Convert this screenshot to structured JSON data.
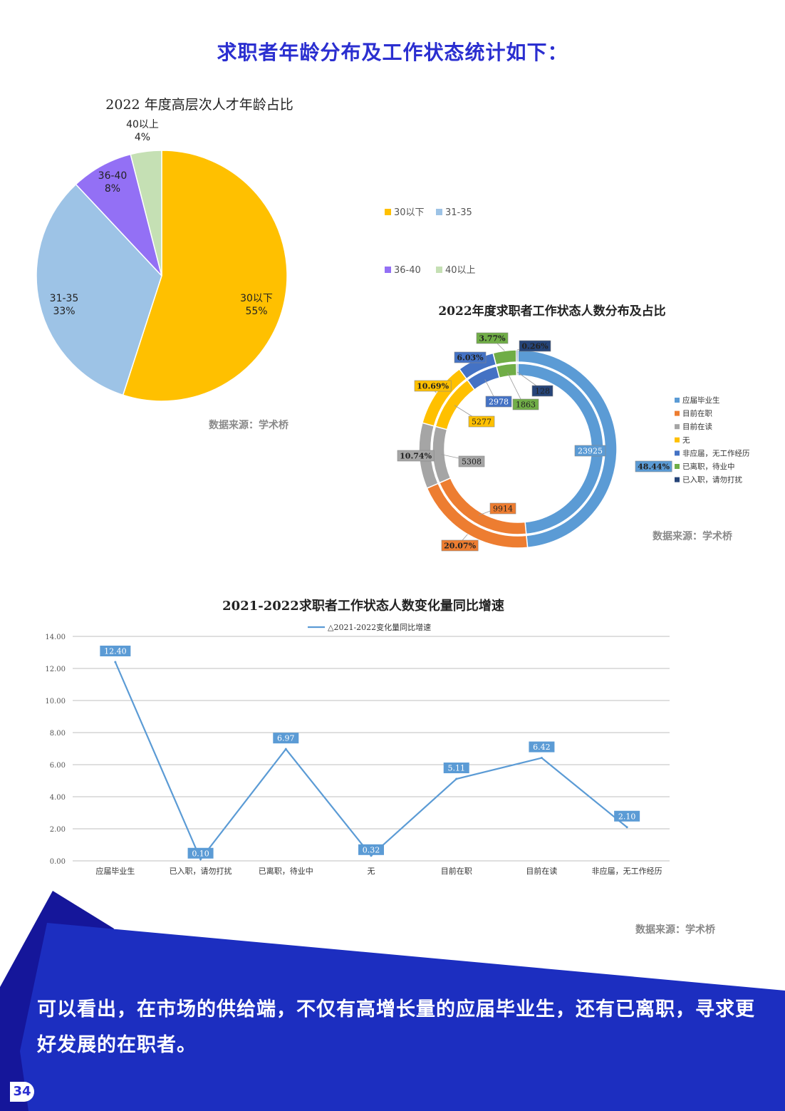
{
  "page": {
    "title": "求职者年龄分布及工作状态统计如下：",
    "conclusion": "可以看出，在市场的供给端，不仅有高增长量的应届毕业生，还有已离职，寻求更好发展的在职者。",
    "page_number": "34",
    "colors": {
      "brand_blue": "#2b2fd0",
      "banner_dark": "#1a1a9e",
      "banner_main": "#1c2ec0"
    }
  },
  "chart_data": [
    {
      "type": "pie",
      "title": "2022 年度高层次人才年龄占比",
      "source": "数据来源：学术桥",
      "slices": [
        {
          "label": "30以下",
          "value": 55,
          "pct_label": "55%",
          "color": "#ffc000"
        },
        {
          "label": "31-35",
          "value": 33,
          "pct_label": "33%",
          "color": "#9dc3e6"
        },
        {
          "label": "36-40",
          "value": 8,
          "pct_label": "8%",
          "color": "#9370f5"
        },
        {
          "label": "40以上",
          "value": 4,
          "pct_label": "4%",
          "color": "#c5e0b4"
        }
      ],
      "legend": [
        "30以下",
        "31-35",
        "36-40",
        "40以上"
      ],
      "legend_position": "right"
    },
    {
      "type": "pie",
      "subtype": "double-donut",
      "title": "2022年度求职者工作状态人数分布及占比",
      "source": "数据来源：学术桥",
      "categories": [
        "应届毕业生",
        "目前在职",
        "目前在读",
        "无",
        "非应届，无工作经历",
        "已离职，待业中",
        "已入职，请勿打扰"
      ],
      "colors": [
        "#5b9bd5",
        "#ed7d31",
        "#a5a5a5",
        "#ffc000",
        "#4472c4",
        "#70ad47",
        "#264478"
      ],
      "counts": [
        23925,
        9914,
        5308,
        5277,
        2978,
        1863,
        128
      ],
      "percents": [
        48.44,
        20.07,
        10.74,
        10.69,
        6.03,
        3.77,
        0.26
      ],
      "count_labels": [
        "23925",
        "9914",
        "5308",
        "5277",
        "2978",
        "1863",
        "128"
      ],
      "percent_labels": [
        "48.44%",
        "20.07%",
        "10.74%",
        "10.69%",
        "6.03%",
        "3.77%",
        "0.26%"
      ],
      "legend_position": "right"
    },
    {
      "type": "line",
      "title": "2021-2022求职者工作状态人数变化量同比增速",
      "source": "数据来源：学术桥",
      "series": [
        {
          "name": "△2021-2022变化量同比增速",
          "color": "#5b9bd5",
          "values": [
            12.4,
            0.1,
            6.97,
            0.32,
            5.11,
            6.42,
            2.1
          ],
          "value_labels": [
            "12.40",
            "0.10",
            "6.97",
            "0.32",
            "5.11",
            "6.42",
            "2.10"
          ]
        }
      ],
      "categories": [
        "应届毕业生",
        "已入职，请勿打扰",
        "已离职，待业中",
        "无",
        "目前在职",
        "目前在读",
        "非应届，无工作经历"
      ],
      "yticks": [
        "0.00",
        "2.00",
        "4.00",
        "6.00",
        "8.00",
        "10.00",
        "12.00",
        "14.00"
      ],
      "ylim": [
        0,
        14
      ],
      "grid": true,
      "legend_position": "top"
    }
  ]
}
